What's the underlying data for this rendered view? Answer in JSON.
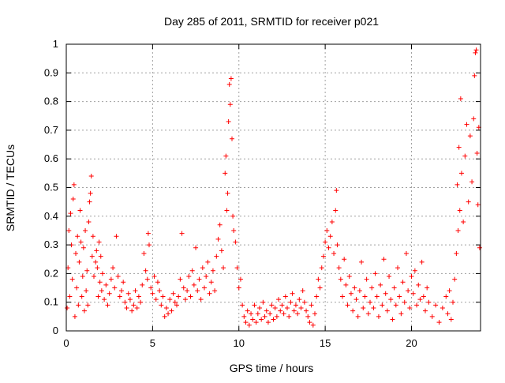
{
  "chart_data": {
    "type": "scatter",
    "title": "Day 285 of 2011, SRMTID for receiver p021",
    "xlabel": "GPS time / hours",
    "ylabel": "SRMTID / TECUs",
    "xlim": [
      0,
      24
    ],
    "ylim": [
      0,
      1
    ],
    "grid": true,
    "marker": "+",
    "marker_color": "#ff0000",
    "x_ticks": [
      {
        "value": 0,
        "label": "0"
      },
      {
        "value": 5,
        "label": "5"
      },
      {
        "value": 10,
        "label": "10"
      },
      {
        "value": 15,
        "label": "15"
      },
      {
        "value": 20,
        "label": "20"
      }
    ],
    "y_ticks": [
      {
        "value": 0,
        "label": "0"
      },
      {
        "value": 0.1,
        "label": "0.1"
      },
      {
        "value": 0.2,
        "label": "0.2"
      },
      {
        "value": 0.3,
        "label": "0.3"
      },
      {
        "value": 0.4,
        "label": "0.4"
      },
      {
        "value": 0.5,
        "label": "0.5"
      },
      {
        "value": 0.6,
        "label": "0.6"
      },
      {
        "value": 0.7,
        "label": "0.7"
      },
      {
        "value": 0.8,
        "label": "0.8"
      },
      {
        "value": 0.9,
        "label": "0.9"
      },
      {
        "value": 1,
        "label": "1"
      }
    ],
    "series": [
      {
        "name": "SRMTID",
        "points": [
          [
            0.05,
            0.08
          ],
          [
            0.1,
            0.22
          ],
          [
            0.15,
            0.35
          ],
          [
            0.2,
            0.12
          ],
          [
            0.25,
            0.41
          ],
          [
            0.3,
            0.3
          ],
          [
            0.35,
            0.18
          ],
          [
            0.4,
            0.46
          ],
          [
            0.45,
            0.51
          ],
          [
            0.5,
            0.05
          ],
          [
            0.55,
            0.27
          ],
          [
            0.6,
            0.15
          ],
          [
            0.65,
            0.33
          ],
          [
            0.7,
            0.09
          ],
          [
            0.75,
            0.24
          ],
          [
            0.8,
            0.42
          ],
          [
            0.85,
            0.31
          ],
          [
            0.9,
            0.12
          ],
          [
            0.95,
            0.19
          ],
          [
            1.0,
            0.29
          ],
          [
            1.05,
            0.07
          ],
          [
            1.1,
            0.35
          ],
          [
            1.15,
            0.14
          ],
          [
            1.2,
            0.21
          ],
          [
            1.25,
            0.09
          ],
          [
            1.3,
            0.38
          ],
          [
            1.35,
            0.45
          ],
          [
            1.4,
            0.48
          ],
          [
            1.45,
            0.54
          ],
          [
            1.5,
            0.26
          ],
          [
            1.55,
            0.33
          ],
          [
            1.6,
            0.19
          ],
          [
            1.7,
            0.24
          ],
          [
            1.75,
            0.28
          ],
          [
            1.8,
            0.22
          ],
          [
            1.85,
            0.12
          ],
          [
            1.9,
            0.31
          ],
          [
            1.95,
            0.17
          ],
          [
            2.0,
            0.26
          ],
          [
            2.05,
            0.14
          ],
          [
            2.1,
            0.2
          ],
          [
            2.2,
            0.11
          ],
          [
            2.3,
            0.16
          ],
          [
            2.4,
            0.09
          ],
          [
            2.5,
            0.13
          ],
          [
            2.6,
            0.18
          ],
          [
            2.7,
            0.22
          ],
          [
            2.8,
            0.15
          ],
          [
            2.9,
            0.33
          ],
          [
            3.0,
            0.19
          ],
          [
            3.1,
            0.12
          ],
          [
            3.2,
            0.14
          ],
          [
            3.3,
            0.17
          ],
          [
            3.4,
            0.1
          ],
          [
            3.5,
            0.08
          ],
          [
            3.6,
            0.13
          ],
          [
            3.7,
            0.11
          ],
          [
            3.8,
            0.07
          ],
          [
            3.9,
            0.09
          ],
          [
            4.0,
            0.14
          ],
          [
            4.1,
            0.08
          ],
          [
            4.2,
            0.12
          ],
          [
            4.3,
            0.1
          ],
          [
            4.4,
            0.16
          ],
          [
            4.5,
            0.27
          ],
          [
            4.6,
            0.21
          ],
          [
            4.7,
            0.18
          ],
          [
            4.75,
            0.34
          ],
          [
            4.8,
            0.3
          ],
          [
            4.9,
            0.15
          ],
          [
            5.0,
            0.13
          ],
          [
            5.1,
            0.19
          ],
          [
            5.2,
            0.11
          ],
          [
            5.3,
            0.17
          ],
          [
            5.4,
            0.14
          ],
          [
            5.5,
            0.09
          ],
          [
            5.6,
            0.12
          ],
          [
            5.7,
            0.05
          ],
          [
            5.8,
            0.08
          ],
          [
            5.9,
            0.06
          ],
          [
            6.0,
            0.11
          ],
          [
            6.1,
            0.07
          ],
          [
            6.2,
            0.13
          ],
          [
            6.3,
            0.1
          ],
          [
            6.4,
            0.09
          ],
          [
            6.5,
            0.12
          ],
          [
            6.6,
            0.18
          ],
          [
            6.7,
            0.34
          ],
          [
            6.8,
            0.15
          ],
          [
            6.9,
            0.11
          ],
          [
            7.0,
            0.14
          ],
          [
            7.1,
            0.19
          ],
          [
            7.2,
            0.12
          ],
          [
            7.3,
            0.21
          ],
          [
            7.4,
            0.16
          ],
          [
            7.5,
            0.29
          ],
          [
            7.6,
            0.14
          ],
          [
            7.7,
            0.18
          ],
          [
            7.8,
            0.11
          ],
          [
            7.9,
            0.22
          ],
          [
            8.0,
            0.15
          ],
          [
            8.1,
            0.19
          ],
          [
            8.2,
            0.24
          ],
          [
            8.3,
            0.13
          ],
          [
            8.4,
            0.17
          ],
          [
            8.5,
            0.21
          ],
          [
            8.6,
            0.14
          ],
          [
            8.7,
            0.26
          ],
          [
            8.8,
            0.32
          ],
          [
            8.9,
            0.37
          ],
          [
            9.0,
            0.28
          ],
          [
            9.1,
            0.22
          ],
          [
            9.2,
            0.55
          ],
          [
            9.25,
            0.61
          ],
          [
            9.3,
            0.42
          ],
          [
            9.35,
            0.48
          ],
          [
            9.4,
            0.73
          ],
          [
            9.45,
            0.86
          ],
          [
            9.5,
            0.79
          ],
          [
            9.55,
            0.88
          ],
          [
            9.6,
            0.67
          ],
          [
            9.65,
            0.4
          ],
          [
            9.7,
            0.35
          ],
          [
            9.8,
            0.31
          ],
          [
            9.9,
            0.22
          ],
          [
            10.0,
            0.15
          ],
          [
            10.1,
            0.18
          ],
          [
            10.2,
            0.09
          ],
          [
            10.3,
            0.05
          ],
          [
            10.4,
            0.03
          ],
          [
            10.5,
            0.07
          ],
          [
            10.6,
            0.02
          ],
          [
            10.7,
            0.06
          ],
          [
            10.8,
            0.04
          ],
          [
            10.9,
            0.09
          ],
          [
            11.0,
            0.03
          ],
          [
            11.1,
            0.06
          ],
          [
            11.2,
            0.08
          ],
          [
            11.3,
            0.04
          ],
          [
            11.4,
            0.1
          ],
          [
            11.5,
            0.05
          ],
          [
            11.6,
            0.07
          ],
          [
            11.7,
            0.03
          ],
          [
            11.8,
            0.06
          ],
          [
            11.9,
            0.09
          ],
          [
            12.0,
            0.04
          ],
          [
            12.1,
            0.08
          ],
          [
            12.2,
            0.05
          ],
          [
            12.3,
            0.11
          ],
          [
            12.4,
            0.07
          ],
          [
            12.5,
            0.09
          ],
          [
            12.6,
            0.06
          ],
          [
            12.7,
            0.12
          ],
          [
            12.8,
            0.08
          ],
          [
            12.9,
            0.05
          ],
          [
            13.0,
            0.1
          ],
          [
            13.1,
            0.13
          ],
          [
            13.2,
            0.07
          ],
          [
            13.3,
            0.09
          ],
          [
            13.4,
            0.06
          ],
          [
            13.5,
            0.11
          ],
          [
            13.6,
            0.08
          ],
          [
            13.7,
            0.14
          ],
          [
            13.8,
            0.1
          ],
          [
            13.9,
            0.07
          ],
          [
            14.0,
            0.05
          ],
          [
            14.1,
            0.03
          ],
          [
            14.2,
            0.09
          ],
          [
            14.3,
            0.02
          ],
          [
            14.4,
            0.06
          ],
          [
            14.5,
            0.12
          ],
          [
            14.6,
            0.18
          ],
          [
            14.7,
            0.15
          ],
          [
            14.8,
            0.22
          ],
          [
            14.9,
            0.26
          ],
          [
            15.0,
            0.31
          ],
          [
            15.1,
            0.35
          ],
          [
            15.2,
            0.29
          ],
          [
            15.3,
            0.33
          ],
          [
            15.4,
            0.38
          ],
          [
            15.5,
            0.27
          ],
          [
            15.6,
            0.42
          ],
          [
            15.65,
            0.49
          ],
          [
            15.7,
            0.3
          ],
          [
            15.8,
            0.22
          ],
          [
            15.9,
            0.18
          ],
          [
            16.0,
            0.12
          ],
          [
            16.1,
            0.25
          ],
          [
            16.2,
            0.16
          ],
          [
            16.3,
            0.09
          ],
          [
            16.4,
            0.19
          ],
          [
            16.5,
            0.13
          ],
          [
            16.6,
            0.07
          ],
          [
            16.7,
            0.15
          ],
          [
            16.8,
            0.11
          ],
          [
            16.9,
            0.05
          ],
          [
            17.0,
            0.14
          ],
          [
            17.1,
            0.24
          ],
          [
            17.2,
            0.08
          ],
          [
            17.3,
            0.12
          ],
          [
            17.4,
            0.18
          ],
          [
            17.5,
            0.06
          ],
          [
            17.6,
            0.1
          ],
          [
            17.7,
            0.15
          ],
          [
            17.8,
            0.08
          ],
          [
            17.9,
            0.2
          ],
          [
            18.0,
            0.12
          ],
          [
            18.1,
            0.05
          ],
          [
            18.2,
            0.16
          ],
          [
            18.3,
            0.09
          ],
          [
            18.4,
            0.25
          ],
          [
            18.5,
            0.13
          ],
          [
            18.6,
            0.07
          ],
          [
            18.7,
            0.19
          ],
          [
            18.8,
            0.11
          ],
          [
            18.9,
            0.04
          ],
          [
            19.0,
            0.15
          ],
          [
            19.1,
            0.09
          ],
          [
            19.2,
            0.22
          ],
          [
            19.3,
            0.12
          ],
          [
            19.4,
            0.06
          ],
          [
            19.5,
            0.17
          ],
          [
            19.6,
            0.1
          ],
          [
            19.7,
            0.27
          ],
          [
            19.8,
            0.14
          ],
          [
            19.9,
            0.08
          ],
          [
            20.0,
            0.19
          ],
          [
            20.1,
            0.13
          ],
          [
            20.2,
            0.21
          ],
          [
            20.3,
            0.09
          ],
          [
            20.4,
            0.16
          ],
          [
            20.5,
            0.11
          ],
          [
            20.6,
            0.24
          ],
          [
            20.7,
            0.12
          ],
          [
            20.8,
            0.07
          ],
          [
            20.9,
            0.15
          ],
          [
            21.0,
            0.1
          ],
          [
            21.2,
            0.05
          ],
          [
            21.4,
            0.09
          ],
          [
            21.6,
            0.03
          ],
          [
            21.8,
            0.08
          ],
          [
            22.0,
            0.12
          ],
          [
            22.1,
            0.06
          ],
          [
            22.2,
            0.14
          ],
          [
            22.3,
            0.04
          ],
          [
            22.4,
            0.1
          ],
          [
            22.5,
            0.18
          ],
          [
            22.6,
            0.27
          ],
          [
            22.65,
            0.51
          ],
          [
            22.7,
            0.35
          ],
          [
            22.75,
            0.64
          ],
          [
            22.8,
            0.42
          ],
          [
            22.85,
            0.81
          ],
          [
            22.9,
            0.55
          ],
          [
            23.0,
            0.38
          ],
          [
            23.1,
            0.61
          ],
          [
            23.2,
            0.72
          ],
          [
            23.3,
            0.45
          ],
          [
            23.4,
            0.68
          ],
          [
            23.5,
            0.52
          ],
          [
            23.6,
            0.74
          ],
          [
            23.65,
            0.89
          ],
          [
            23.7,
            0.97
          ],
          [
            23.75,
            0.98
          ],
          [
            23.8,
            0.62
          ],
          [
            23.85,
            0.44
          ],
          [
            23.9,
            0.71
          ],
          [
            23.95,
            0.29
          ]
        ]
      }
    ]
  }
}
